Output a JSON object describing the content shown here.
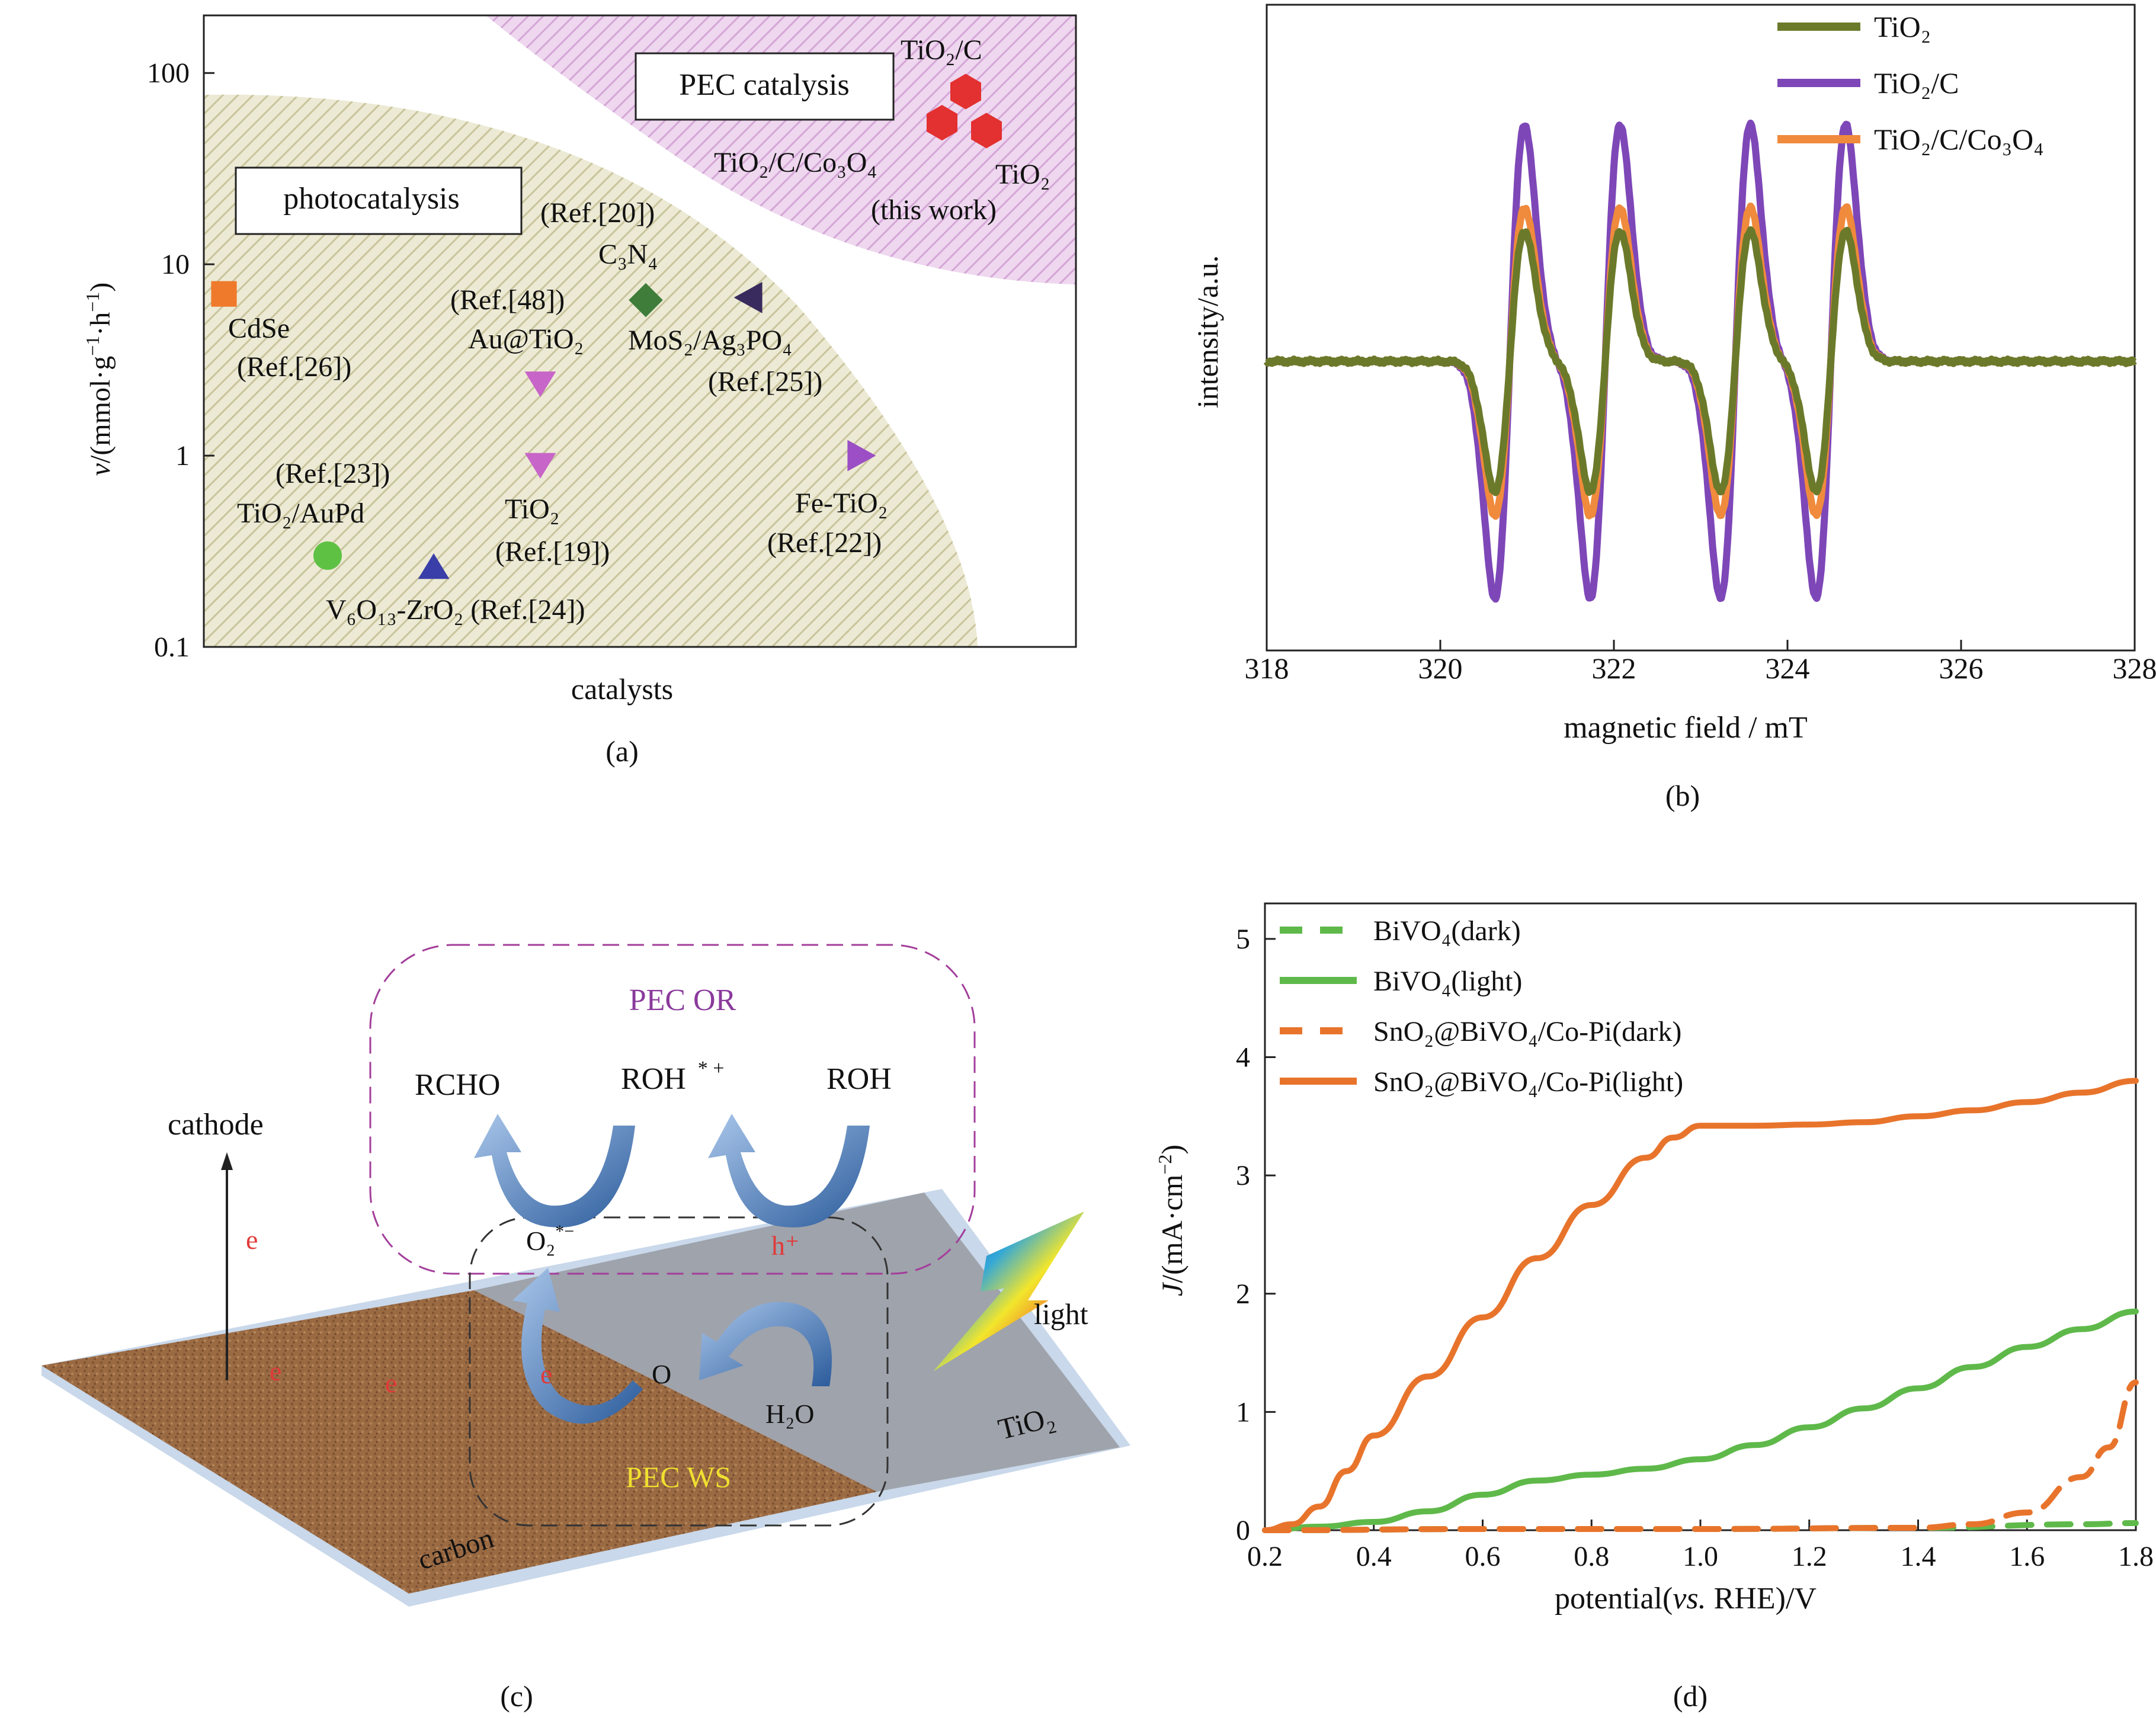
{
  "panel_labels": [
    "(a)",
    "(b)",
    "(c)",
    "(d)"
  ],
  "chart_data": [
    {
      "type": "scatter",
      "panel": "(a)",
      "xlabel": "catalysts",
      "ylabel": "v/(mmol·g⁻¹·h⁻¹)",
      "yscale": "log",
      "ylim": [
        0.1,
        200
      ],
      "yticks": [
        "0.1",
        "1",
        "10",
        "100"
      ],
      "regions": [
        {
          "name": "photocatalysis",
          "color": "#e8e4c8"
        },
        {
          "name": "PEC catalysis",
          "color": "#e4c6e6"
        }
      ],
      "points": [
        {
          "label": "CdSe (Ref.[26])",
          "y": 7,
          "marker": "square",
          "color": "#f07a2c"
        },
        {
          "label": "TiO2/AuPd (Ref.[23])",
          "y": 0.3,
          "marker": "circle",
          "color": "#5fc144"
        },
        {
          "label": "V6O13-ZrO2 (Ref.[24])",
          "y": 0.26,
          "marker": "triangle-up",
          "color": "#3a3ea8"
        },
        {
          "label": "Au@TiO2 (Ref.[48])",
          "y": 2.4,
          "marker": "triangle-down",
          "color": "#c865c8"
        },
        {
          "label": "TiO2 (Ref.[19])",
          "y": 0.9,
          "marker": "triangle-down",
          "color": "#c865c8"
        },
        {
          "label": "C3N4 (Ref.[20])",
          "y": 6.5,
          "marker": "diamond",
          "color": "#3f7d3a"
        },
        {
          "label": "MoS2/Ag3PO4 (Ref.[25])",
          "y": 6.7,
          "marker": "triangle-left",
          "color": "#3a2b5e"
        },
        {
          "label": "Fe-TiO2 (Ref.[22])",
          "y": 1.0,
          "marker": "triangle-right",
          "color": "#9c4fc4"
        },
        {
          "label": "TiO2/C (this work)",
          "y": 80,
          "marker": "hexagon",
          "color": "#e33030"
        },
        {
          "label": "TiO2/C/Co3O4 (this work)",
          "y": 55,
          "marker": "hexagon",
          "color": "#e33030"
        },
        {
          "label": "TiO2 (this work)",
          "y": 50,
          "marker": "hexagon",
          "color": "#e33030"
        }
      ]
    },
    {
      "type": "line",
      "panel": "(b)",
      "xlabel": "magnetic field / mT",
      "ylabel": "intensity/a.u.",
      "xlim": [
        318,
        328
      ],
      "xticks": [
        318,
        320,
        322,
        324,
        326,
        328
      ],
      "line_centers_mT": [
        320.8,
        321.9,
        323.4,
        324.5
      ],
      "series": [
        {
          "name": "TiO2",
          "color": "#6b7a2a",
          "relative_amplitude": 0.55
        },
        {
          "name": "TiO2/C",
          "color": "#7e47b8",
          "relative_amplitude": 1.0
        },
        {
          "name": "TiO2/C/Co3O4",
          "color": "#f08a3c",
          "relative_amplitude": 0.65
        }
      ]
    },
    {
      "type": "line",
      "panel": "(d)",
      "xlabel": "potential(vs. RHE)/V",
      "ylabel": "J/(mA·cm⁻²)",
      "xlim": [
        0.2,
        1.8
      ],
      "ylim": [
        0,
        5.3
      ],
      "xticks": [
        "0.2",
        "0.4",
        "0.6",
        "0.8",
        "1.0",
        "1.2",
        "1.4",
        "1.6",
        "1.8"
      ],
      "yticks": [
        "0",
        "1",
        "2",
        "3",
        "4",
        "5"
      ],
      "series": [
        {
          "name": "BiVO4(dark)",
          "color": "#5fb94a",
          "dash": true,
          "x": [
            0.2,
            0.6,
            1.0,
            1.4,
            1.7,
            1.8
          ],
          "y": [
            0,
            0.01,
            0.01,
            0.02,
            0.05,
            0.06
          ]
        },
        {
          "name": "BiVO4(light)",
          "color": "#5fb94a",
          "dash": false,
          "x": [
            0.2,
            0.3,
            0.4,
            0.5,
            0.6,
            0.7,
            0.8,
            0.9,
            1.0,
            1.1,
            1.2,
            1.3,
            1.4,
            1.5,
            1.6,
            1.7,
            1.8
          ],
          "y": [
            0,
            0.03,
            0.07,
            0.16,
            0.3,
            0.42,
            0.47,
            0.52,
            0.6,
            0.72,
            0.87,
            1.03,
            1.2,
            1.38,
            1.55,
            1.7,
            1.85
          ]
        },
        {
          "name": "SnO2@BiVO4/Co-Pi(dark)",
          "color": "#e8742c",
          "dash": true,
          "x": [
            0.2,
            0.6,
            1.0,
            1.4,
            1.5,
            1.6,
            1.7,
            1.75,
            1.8
          ],
          "y": [
            0,
            0.01,
            0.01,
            0.02,
            0.05,
            0.15,
            0.45,
            0.7,
            1.25
          ]
        },
        {
          "name": "SnO2@BiVO4/Co-Pi(light)",
          "color": "#e8742c",
          "dash": false,
          "x": [
            0.2,
            0.25,
            0.3,
            0.35,
            0.4,
            0.5,
            0.6,
            0.7,
            0.8,
            0.9,
            0.95,
            1.0,
            1.1,
            1.2,
            1.3,
            1.4,
            1.5,
            1.6,
            1.7,
            1.8
          ],
          "y": [
            0,
            0.05,
            0.2,
            0.5,
            0.8,
            1.3,
            1.8,
            2.3,
            2.75,
            3.15,
            3.32,
            3.42,
            3.42,
            3.43,
            3.45,
            3.5,
            3.55,
            3.62,
            3.7,
            3.8
          ]
        }
      ]
    }
  ],
  "panel_a": {
    "region_labels": {
      "photocatalysis": "photocatalysis",
      "pec": "PEC catalysis"
    },
    "point_labels": {
      "cdse": "CdSe",
      "cdse_ref": "(Ref.[26])",
      "auppd_ref": "(Ref.[23])",
      "aupd": "TiO₂/AuPd",
      "vzr": "V₆O₁₃-ZrO₂ (Ref.[24])",
      "au_ref": "(Ref.[48])",
      "au": "Au@TiO₂",
      "tio2": "TiO₂",
      "tio2_ref": "(Ref.[19])",
      "c3n4_ref": "(Ref.[20])",
      "c3n4": "C₃N₄",
      "mos2": "MoS₂/Ag₃PO₄",
      "mos2_ref": "(Ref.[25])",
      "fe": "Fe-TiO₂",
      "fe_ref": "(Ref.[22])",
      "tic": "TiO₂/C",
      "ticco": "TiO₂/C/Co₃O₄",
      "ti": "TiO₂",
      "thiswork": "(this work)"
    }
  },
  "panel_b": {
    "legend": [
      "TiO₂",
      "TiO₂/C",
      "TiO₂/C/Co₃O₄"
    ],
    "xticks": [
      "318",
      "320",
      "322",
      "324",
      "326",
      "328"
    ]
  },
  "panel_c": {
    "pec_or": "PEC OR",
    "pec_ws": "PEC WS",
    "rcho": "RCHO",
    "roh_radical": "ROH",
    "roh_radical_sup": "* +",
    "roh": "ROH",
    "cathode": "cathode",
    "e": "e",
    "o2": "O₂",
    "o2_sup": "*−",
    "h_plus": "h⁺",
    "o": "O",
    "h2o": "H₂O",
    "light": "light",
    "tio2": "TiO₂",
    "carbon": "carbon"
  },
  "panel_d": {
    "legend": [
      "BiVO₄(dark)",
      "BiVO₄(light)",
      "SnO₂@BiVO₄/Co-Pi(dark)",
      "SnO₂@BiVO₄/Co-Pi(light)"
    ]
  }
}
